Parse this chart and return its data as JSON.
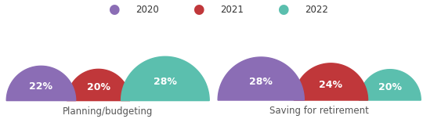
{
  "groups": [
    {
      "label": "Planning/budgeting",
      "values": [
        22,
        20,
        28
      ]
    },
    {
      "label": "Saving for retirement",
      "values": [
        28,
        24,
        20
      ]
    }
  ],
  "years": [
    "2020",
    "2021",
    "2022"
  ],
  "colors": [
    "#8b6db5",
    "#c0373a",
    "#5bbfae"
  ],
  "text_color": "#ffffff",
  "label_color": "#555555",
  "background_color": "#ffffff",
  "label_fontsize": 8.5,
  "value_fontsize": 9,
  "legend_fontsize": 8.5
}
